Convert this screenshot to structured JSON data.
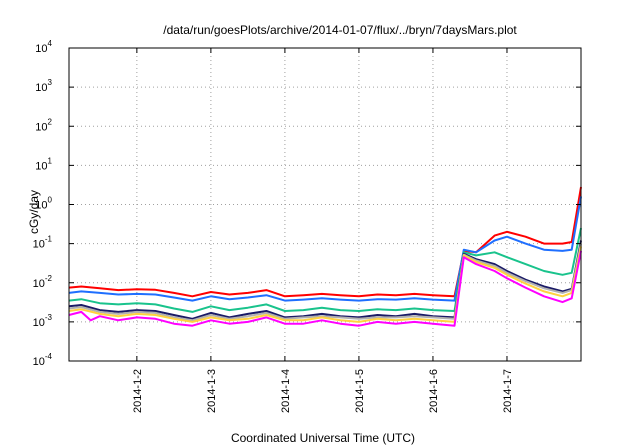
{
  "chart_data": {
    "type": "line",
    "title": "/data/run/goesPlots/archive/2014-01-07/flux/../bryn/7daysMars.plot",
    "xlabel": "Coordinated Universal Time (UTC)",
    "ylabel": "cGy/day",
    "y_scale": "log",
    "ylim": [
      "1e-4",
      "1e4"
    ],
    "y_ticks": [
      {
        "value": 0.0001,
        "base": "10",
        "exp": "-4"
      },
      {
        "value": 0.001,
        "base": "10",
        "exp": "-3"
      },
      {
        "value": 0.01,
        "base": "10",
        "exp": "-2"
      },
      {
        "value": 0.1,
        "base": "10",
        "exp": "-1"
      },
      {
        "value": 1,
        "base": "10",
        "exp": "0"
      },
      {
        "value": 10,
        "base": "10",
        "exp": "1"
      },
      {
        "value": 100,
        "base": "10",
        "exp": "2"
      },
      {
        "value": 1000,
        "base": "10",
        "exp": "3"
      },
      {
        "value": 10000,
        "base": "10",
        "exp": "4"
      }
    ],
    "xlim": [
      "2014-01-01 02:00",
      "2014-01-08 00:00"
    ],
    "x_ticks": [
      {
        "value": "2014-01-02 00:00",
        "label": "2014-1-2"
      },
      {
        "value": "2014-01-03 00:00",
        "label": "2014-1-3"
      },
      {
        "value": "2014-01-04 00:00",
        "label": "2014-1-4"
      },
      {
        "value": "2014-01-05 00:00",
        "label": "2014-1-5"
      },
      {
        "value": "2014-01-06 00:00",
        "label": "2014-1-6"
      },
      {
        "value": "2014-01-07 00:00",
        "label": "2014-1-7"
      }
    ],
    "grid": true,
    "legend": "none",
    "series": [
      {
        "color": "#ff0000",
        "points": [
          [
            "2014-01-01 02:00",
            0.0075
          ],
          [
            "2014-01-01 06:00",
            0.008
          ],
          [
            "2014-01-01 12:00",
            0.0072
          ],
          [
            "2014-01-01 18:00",
            0.0065
          ],
          [
            "2014-01-02 00:00",
            0.0068
          ],
          [
            "2014-01-02 06:00",
            0.0066
          ],
          [
            "2014-01-02 12:00",
            0.0055
          ],
          [
            "2014-01-02 18:00",
            0.0045
          ],
          [
            "2014-01-03 00:00",
            0.0058
          ],
          [
            "2014-01-03 06:00",
            0.005
          ],
          [
            "2014-01-03 12:00",
            0.0055
          ],
          [
            "2014-01-03 18:00",
            0.0065
          ],
          [
            "2014-01-04 00:00",
            0.0045
          ],
          [
            "2014-01-04 06:00",
            0.0048
          ],
          [
            "2014-01-04 12:00",
            0.0052
          ],
          [
            "2014-01-04 18:00",
            0.0048
          ],
          [
            "2014-01-05 00:00",
            0.0045
          ],
          [
            "2014-01-05 06:00",
            0.005
          ],
          [
            "2014-01-05 12:00",
            0.0048
          ],
          [
            "2014-01-05 18:00",
            0.0052
          ],
          [
            "2014-01-06 00:00",
            0.0048
          ],
          [
            "2014-01-06 07:00",
            0.0045
          ],
          [
            "2014-01-06 10:00",
            0.065
          ],
          [
            "2014-01-06 14:00",
            0.06
          ],
          [
            "2014-01-06 20:00",
            0.16
          ],
          [
            "2014-01-07 00:00",
            0.2
          ],
          [
            "2014-01-07 06:00",
            0.15
          ],
          [
            "2014-01-07 12:00",
            0.1
          ],
          [
            "2014-01-07 18:00",
            0.1
          ],
          [
            "2014-01-07 21:00",
            0.11
          ],
          [
            "2014-01-08 00:00",
            2.8
          ]
        ]
      },
      {
        "color": "#1f6fff",
        "points": [
          [
            "2014-01-01 02:00",
            0.0055
          ],
          [
            "2014-01-01 06:00",
            0.006
          ],
          [
            "2014-01-01 12:00",
            0.0055
          ],
          [
            "2014-01-01 18:00",
            0.005
          ],
          [
            "2014-01-02 00:00",
            0.0052
          ],
          [
            "2014-01-02 06:00",
            0.005
          ],
          [
            "2014-01-02 12:00",
            0.0042
          ],
          [
            "2014-01-02 18:00",
            0.0035
          ],
          [
            "2014-01-03 00:00",
            0.0045
          ],
          [
            "2014-01-03 06:00",
            0.0038
          ],
          [
            "2014-01-03 12:00",
            0.0042
          ],
          [
            "2014-01-03 18:00",
            0.0048
          ],
          [
            "2014-01-04 00:00",
            0.0035
          ],
          [
            "2014-01-04 06:00",
            0.0037
          ],
          [
            "2014-01-04 12:00",
            0.004
          ],
          [
            "2014-01-04 18:00",
            0.0037
          ],
          [
            "2014-01-05 00:00",
            0.0035
          ],
          [
            "2014-01-05 06:00",
            0.0038
          ],
          [
            "2014-01-05 12:00",
            0.0037
          ],
          [
            "2014-01-05 18:00",
            0.004
          ],
          [
            "2014-01-06 00:00",
            0.0037
          ],
          [
            "2014-01-06 07:00",
            0.0035
          ],
          [
            "2014-01-06 10:00",
            0.07
          ],
          [
            "2014-01-06 14:00",
            0.06
          ],
          [
            "2014-01-06 20:00",
            0.12
          ],
          [
            "2014-01-07 00:00",
            0.15
          ],
          [
            "2014-01-07 06:00",
            0.1
          ],
          [
            "2014-01-07 12:00",
            0.07
          ],
          [
            "2014-01-07 18:00",
            0.065
          ],
          [
            "2014-01-07 21:00",
            0.07
          ],
          [
            "2014-01-08 00:00",
            1.6
          ]
        ]
      },
      {
        "color": "#19c38c",
        "points": [
          [
            "2014-01-01 02:00",
            0.0035
          ],
          [
            "2014-01-01 06:00",
            0.0038
          ],
          [
            "2014-01-01 12:00",
            0.003
          ],
          [
            "2014-01-01 18:00",
            0.0028
          ],
          [
            "2014-01-02 00:00",
            0.003
          ],
          [
            "2014-01-02 06:00",
            0.0028
          ],
          [
            "2014-01-02 12:00",
            0.0022
          ],
          [
            "2014-01-02 18:00",
            0.0018
          ],
          [
            "2014-01-03 00:00",
            0.0025
          ],
          [
            "2014-01-03 06:00",
            0.002
          ],
          [
            "2014-01-03 12:00",
            0.0023
          ],
          [
            "2014-01-03 18:00",
            0.0028
          ],
          [
            "2014-01-04 00:00",
            0.0019
          ],
          [
            "2014-01-04 06:00",
            0.002
          ],
          [
            "2014-01-04 12:00",
            0.0023
          ],
          [
            "2014-01-04 18:00",
            0.002
          ],
          [
            "2014-01-05 00:00",
            0.0019
          ],
          [
            "2014-01-05 06:00",
            0.0021
          ],
          [
            "2014-01-05 12:00",
            0.002
          ],
          [
            "2014-01-05 18:00",
            0.0022
          ],
          [
            "2014-01-06 00:00",
            0.002
          ],
          [
            "2014-01-06 07:00",
            0.0019
          ],
          [
            "2014-01-06 10:00",
            0.06
          ],
          [
            "2014-01-06 14:00",
            0.05
          ],
          [
            "2014-01-06 20:00",
            0.06
          ],
          [
            "2014-01-07 00:00",
            0.045
          ],
          [
            "2014-01-07 06:00",
            0.03
          ],
          [
            "2014-01-07 12:00",
            0.02
          ],
          [
            "2014-01-07 18:00",
            0.016
          ],
          [
            "2014-01-07 21:00",
            0.018
          ],
          [
            "2014-01-08 00:00",
            0.25
          ]
        ]
      },
      {
        "color": "#1a1a66",
        "points": [
          [
            "2014-01-01 02:00",
            0.0025
          ],
          [
            "2014-01-01 06:00",
            0.0027
          ],
          [
            "2014-01-01 12:00",
            0.002
          ],
          [
            "2014-01-01 18:00",
            0.0018
          ],
          [
            "2014-01-02 00:00",
            0.002
          ],
          [
            "2014-01-02 06:00",
            0.0019
          ],
          [
            "2014-01-02 12:00",
            0.0015
          ],
          [
            "2014-01-02 18:00",
            0.0012
          ],
          [
            "2014-01-03 00:00",
            0.0017
          ],
          [
            "2014-01-03 06:00",
            0.0013
          ],
          [
            "2014-01-03 12:00",
            0.0016
          ],
          [
            "2014-01-03 18:00",
            0.0019
          ],
          [
            "2014-01-04 00:00",
            0.0013
          ],
          [
            "2014-01-04 06:00",
            0.0014
          ],
          [
            "2014-01-04 12:00",
            0.0016
          ],
          [
            "2014-01-04 18:00",
            0.0014
          ],
          [
            "2014-01-05 00:00",
            0.0013
          ],
          [
            "2014-01-05 06:00",
            0.0015
          ],
          [
            "2014-01-05 12:00",
            0.0014
          ],
          [
            "2014-01-05 18:00",
            0.0016
          ],
          [
            "2014-01-06 00:00",
            0.0014
          ],
          [
            "2014-01-06 07:00",
            0.0013
          ],
          [
            "2014-01-06 10:00",
            0.055
          ],
          [
            "2014-01-06 14:00",
            0.04
          ],
          [
            "2014-01-06 20:00",
            0.03
          ],
          [
            "2014-01-07 00:00",
            0.02
          ],
          [
            "2014-01-07 06:00",
            0.012
          ],
          [
            "2014-01-07 12:00",
            0.008
          ],
          [
            "2014-01-07 18:00",
            0.006
          ],
          [
            "2014-01-07 21:00",
            0.007
          ],
          [
            "2014-01-08 00:00",
            0.12
          ]
        ]
      },
      {
        "color": "#b0b0b0",
        "points": [
          [
            "2014-01-01 02:00",
            0.0022
          ],
          [
            "2014-01-01 06:00",
            0.0024
          ],
          [
            "2014-01-01 12:00",
            0.0018
          ],
          [
            "2014-01-01 18:00",
            0.0016
          ],
          [
            "2014-01-02 00:00",
            0.0018
          ],
          [
            "2014-01-02 06:00",
            0.0017
          ],
          [
            "2014-01-02 12:00",
            0.0013
          ],
          [
            "2014-01-02 18:00",
            0.0011
          ],
          [
            "2014-01-03 00:00",
            0.0015
          ],
          [
            "2014-01-03 06:00",
            0.0012
          ],
          [
            "2014-01-03 12:00",
            0.0014
          ],
          [
            "2014-01-03 18:00",
            0.0017
          ],
          [
            "2014-01-04 00:00",
            0.0012
          ],
          [
            "2014-01-04 06:00",
            0.0013
          ],
          [
            "2014-01-04 12:00",
            0.0014
          ],
          [
            "2014-01-04 18:00",
            0.0013
          ],
          [
            "2014-01-05 00:00",
            0.0012
          ],
          [
            "2014-01-05 06:00",
            0.0013
          ],
          [
            "2014-01-05 12:00",
            0.0013
          ],
          [
            "2014-01-05 18:00",
            0.0014
          ],
          [
            "2014-01-06 00:00",
            0.0013
          ],
          [
            "2014-01-06 07:00",
            0.0012
          ],
          [
            "2014-01-06 10:00",
            0.052
          ],
          [
            "2014-01-06 14:00",
            0.037
          ],
          [
            "2014-01-06 20:00",
            0.027
          ],
          [
            "2014-01-07 00:00",
            0.018
          ],
          [
            "2014-01-07 06:00",
            0.011
          ],
          [
            "2014-01-07 12:00",
            0.0072
          ],
          [
            "2014-01-07 18:00",
            0.0055
          ],
          [
            "2014-01-07 21:00",
            0.0065
          ],
          [
            "2014-01-08 00:00",
            0.1
          ]
        ]
      },
      {
        "color": "#ffd23f",
        "points": [
          [
            "2014-01-01 02:00",
            0.0019
          ],
          [
            "2014-01-01 06:00",
            0.0021
          ],
          [
            "2014-01-01 12:00",
            0.0016
          ],
          [
            "2014-01-01 18:00",
            0.0014
          ],
          [
            "2014-01-02 00:00",
            0.0016
          ],
          [
            "2014-01-02 06:00",
            0.0015
          ],
          [
            "2014-01-02 12:00",
            0.0012
          ],
          [
            "2014-01-02 18:00",
            0.001
          ],
          [
            "2014-01-03 00:00",
            0.0013
          ],
          [
            "2014-01-03 06:00",
            0.0011
          ],
          [
            "2014-01-03 12:00",
            0.0012
          ],
          [
            "2014-01-03 18:00",
            0.0015
          ],
          [
            "2014-01-04 00:00",
            0.0011
          ],
          [
            "2014-01-04 06:00",
            0.0011
          ],
          [
            "2014-01-04 12:00",
            0.0013
          ],
          [
            "2014-01-04 18:00",
            0.0011
          ],
          [
            "2014-01-05 00:00",
            0.001
          ],
          [
            "2014-01-05 06:00",
            0.0012
          ],
          [
            "2014-01-05 12:00",
            0.0011
          ],
          [
            "2014-01-05 18:00",
            0.0012
          ],
          [
            "2014-01-06 00:00",
            0.0011
          ],
          [
            "2014-01-06 07:00",
            0.001
          ],
          [
            "2014-01-06 10:00",
            0.05
          ],
          [
            "2014-01-06 14:00",
            0.034
          ],
          [
            "2014-01-06 20:00",
            0.024
          ],
          [
            "2014-01-07 00:00",
            0.016
          ],
          [
            "2014-01-07 06:00",
            0.0095
          ],
          [
            "2014-01-07 12:00",
            0.006
          ],
          [
            "2014-01-07 18:00",
            0.0045
          ],
          [
            "2014-01-07 21:00",
            0.0055
          ],
          [
            "2014-01-08 00:00",
            0.085
          ]
        ]
      },
      {
        "color": "#ff00ff",
        "points": [
          [
            "2014-01-01 02:00",
            0.0015
          ],
          [
            "2014-01-01 06:00",
            0.0018
          ],
          [
            "2014-01-01 09:00",
            0.0011
          ],
          [
            "2014-01-01 12:00",
            0.0014
          ],
          [
            "2014-01-01 18:00",
            0.0011
          ],
          [
            "2014-01-02 00:00",
            0.0013
          ],
          [
            "2014-01-02 06:00",
            0.0012
          ],
          [
            "2014-01-02 12:00",
            0.0009
          ],
          [
            "2014-01-02 18:00",
            0.0008
          ],
          [
            "2014-01-03 00:00",
            0.0011
          ],
          [
            "2014-01-03 06:00",
            0.0009
          ],
          [
            "2014-01-03 12:00",
            0.001
          ],
          [
            "2014-01-03 18:00",
            0.0013
          ],
          [
            "2014-01-04 00:00",
            0.0009
          ],
          [
            "2014-01-04 06:00",
            0.0009
          ],
          [
            "2014-01-04 12:00",
            0.0011
          ],
          [
            "2014-01-04 18:00",
            0.0009
          ],
          [
            "2014-01-05 00:00",
            0.0008
          ],
          [
            "2014-01-05 06:00",
            0.001
          ],
          [
            "2014-01-05 12:00",
            0.0009
          ],
          [
            "2014-01-05 18:00",
            0.001
          ],
          [
            "2014-01-06 00:00",
            0.0009
          ],
          [
            "2014-01-06 07:00",
            0.0008
          ],
          [
            "2014-01-06 10:00",
            0.045
          ],
          [
            "2014-01-06 14:00",
            0.03
          ],
          [
            "2014-01-06 20:00",
            0.02
          ],
          [
            "2014-01-07 00:00",
            0.013
          ],
          [
            "2014-01-07 06:00",
            0.0075
          ],
          [
            "2014-01-07 12:00",
            0.0045
          ],
          [
            "2014-01-07 18:00",
            0.0032
          ],
          [
            "2014-01-07 21:00",
            0.004
          ],
          [
            "2014-01-08 00:00",
            0.065
          ]
        ]
      }
    ]
  }
}
